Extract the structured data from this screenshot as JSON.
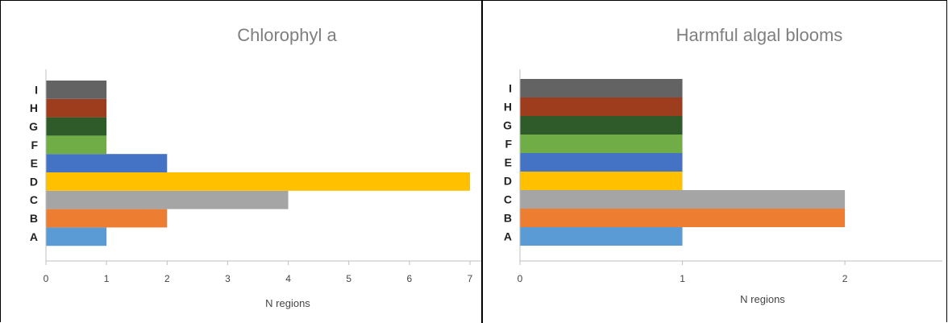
{
  "chart_data": [
    {
      "type": "bar",
      "orientation": "horizontal",
      "title": "Chlorophyl a",
      "xlabel": "N regions",
      "ylabel": "",
      "xlim": [
        0,
        7
      ],
      "xticks": [
        "0",
        "1",
        "2",
        "3",
        "4",
        "5",
        "6",
        "7"
      ],
      "categories": [
        "A",
        "B",
        "C",
        "D",
        "E",
        "F",
        "G",
        "H",
        "I"
      ],
      "values": [
        1,
        2,
        4,
        7,
        2,
        1,
        1,
        1,
        1
      ],
      "colors": [
        "#5b9bd5",
        "#ed7d31",
        "#a5a5a5",
        "#ffc000",
        "#4472c4",
        "#70ad47",
        "#2f5b2a",
        "#9e3d1e",
        "#636363"
      ],
      "grid": false,
      "legend": "none"
    },
    {
      "type": "bar",
      "orientation": "horizontal",
      "title": "Harmful algal blooms",
      "xlabel": "N regions",
      "ylabel": "",
      "xlim": [
        0,
        2.6
      ],
      "xticks": [
        "0",
        "1",
        "2"
      ],
      "categories": [
        "A",
        "B",
        "C",
        "D",
        "E",
        "F",
        "G",
        "H",
        "I"
      ],
      "values": [
        1,
        2,
        2,
        1,
        1,
        1,
        1,
        1,
        1
      ],
      "colors": [
        "#5b9bd5",
        "#ed7d31",
        "#a5a5a5",
        "#ffc000",
        "#4472c4",
        "#70ad47",
        "#2f5b2a",
        "#9e3d1e",
        "#636363"
      ],
      "grid": false,
      "legend": "none"
    }
  ]
}
